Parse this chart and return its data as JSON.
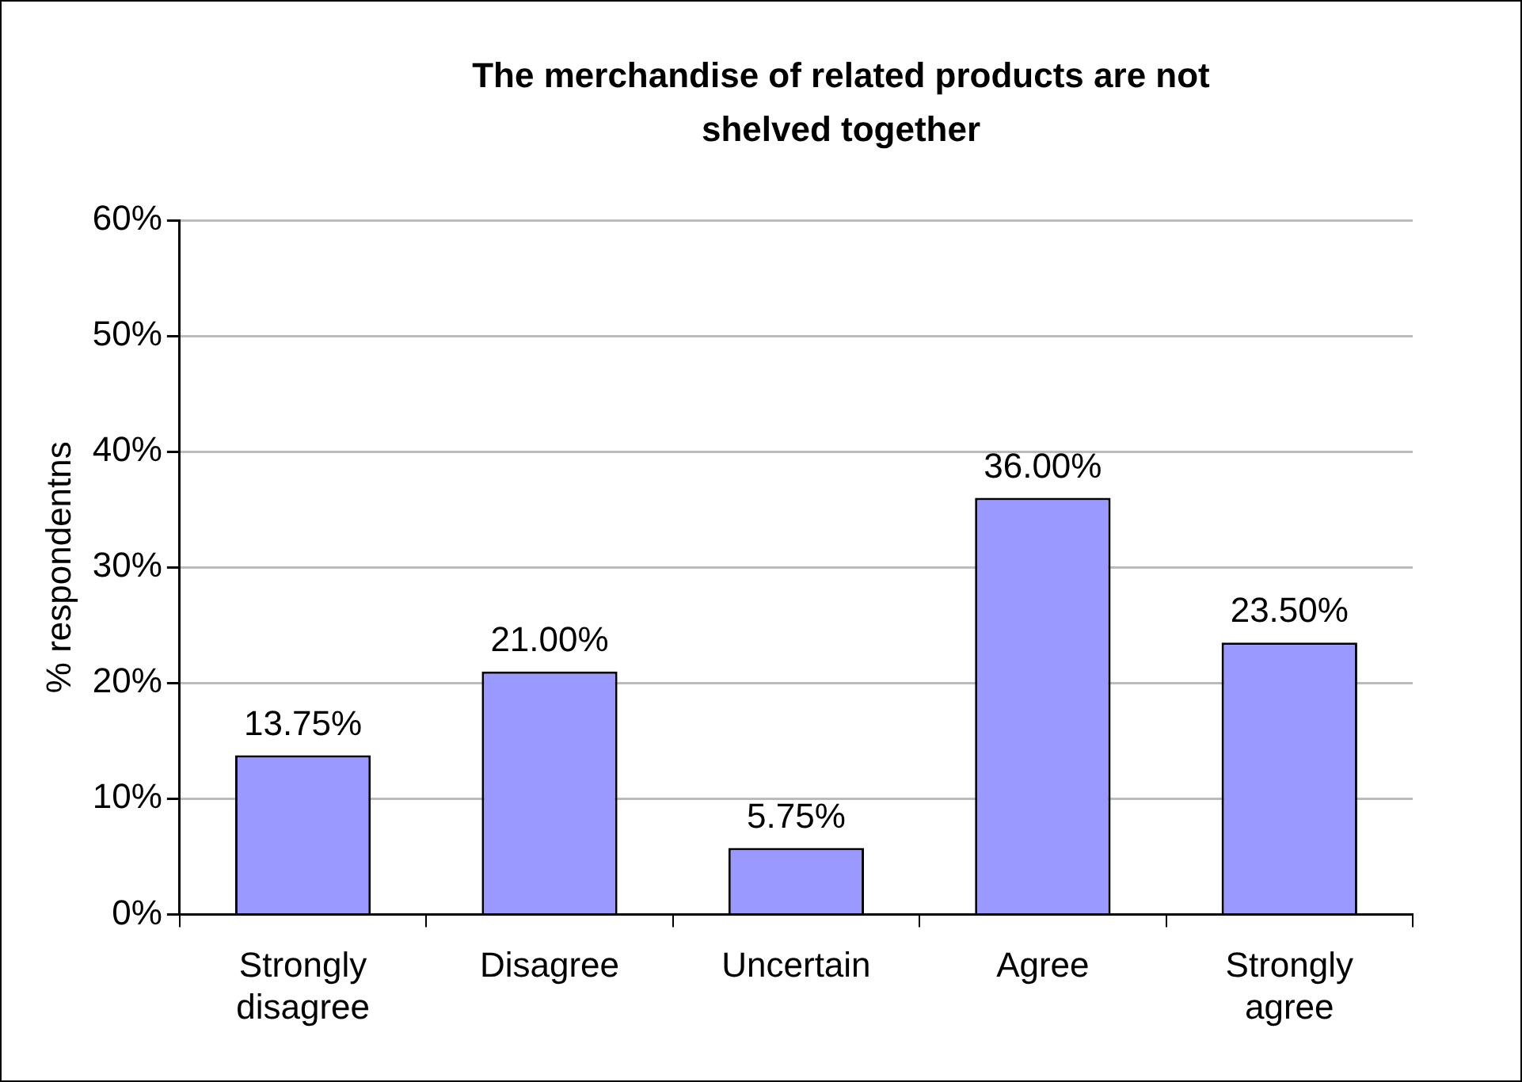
{
  "chart_data": {
    "type": "bar",
    "title": "The merchandise of related products are not shelved together",
    "ylabel": "% respondentns",
    "categories": [
      "Strongly disagree",
      "Disagree",
      "Uncertain",
      "Agree",
      "Strongly agree"
    ],
    "values": [
      13.75,
      21,
      5.75,
      36,
      23.5
    ],
    "value_labels": [
      "13.75%",
      "21.00%",
      "5.75%",
      "36.00%",
      "23.50%"
    ],
    "color": "#9999ff",
    "ylim": [
      0,
      60
    ],
    "yticks": [
      {
        "value": 0,
        "label": "0%"
      },
      {
        "value": 10,
        "label": "10%"
      },
      {
        "value": 20,
        "label": "20%"
      },
      {
        "value": 30,
        "label": "30%"
      },
      {
        "value": 40,
        "label": "40%"
      },
      {
        "value": 50,
        "label": "50%"
      },
      {
        "value": 60,
        "label": "60%"
      }
    ],
    "grid": "y",
    "legend": false
  }
}
